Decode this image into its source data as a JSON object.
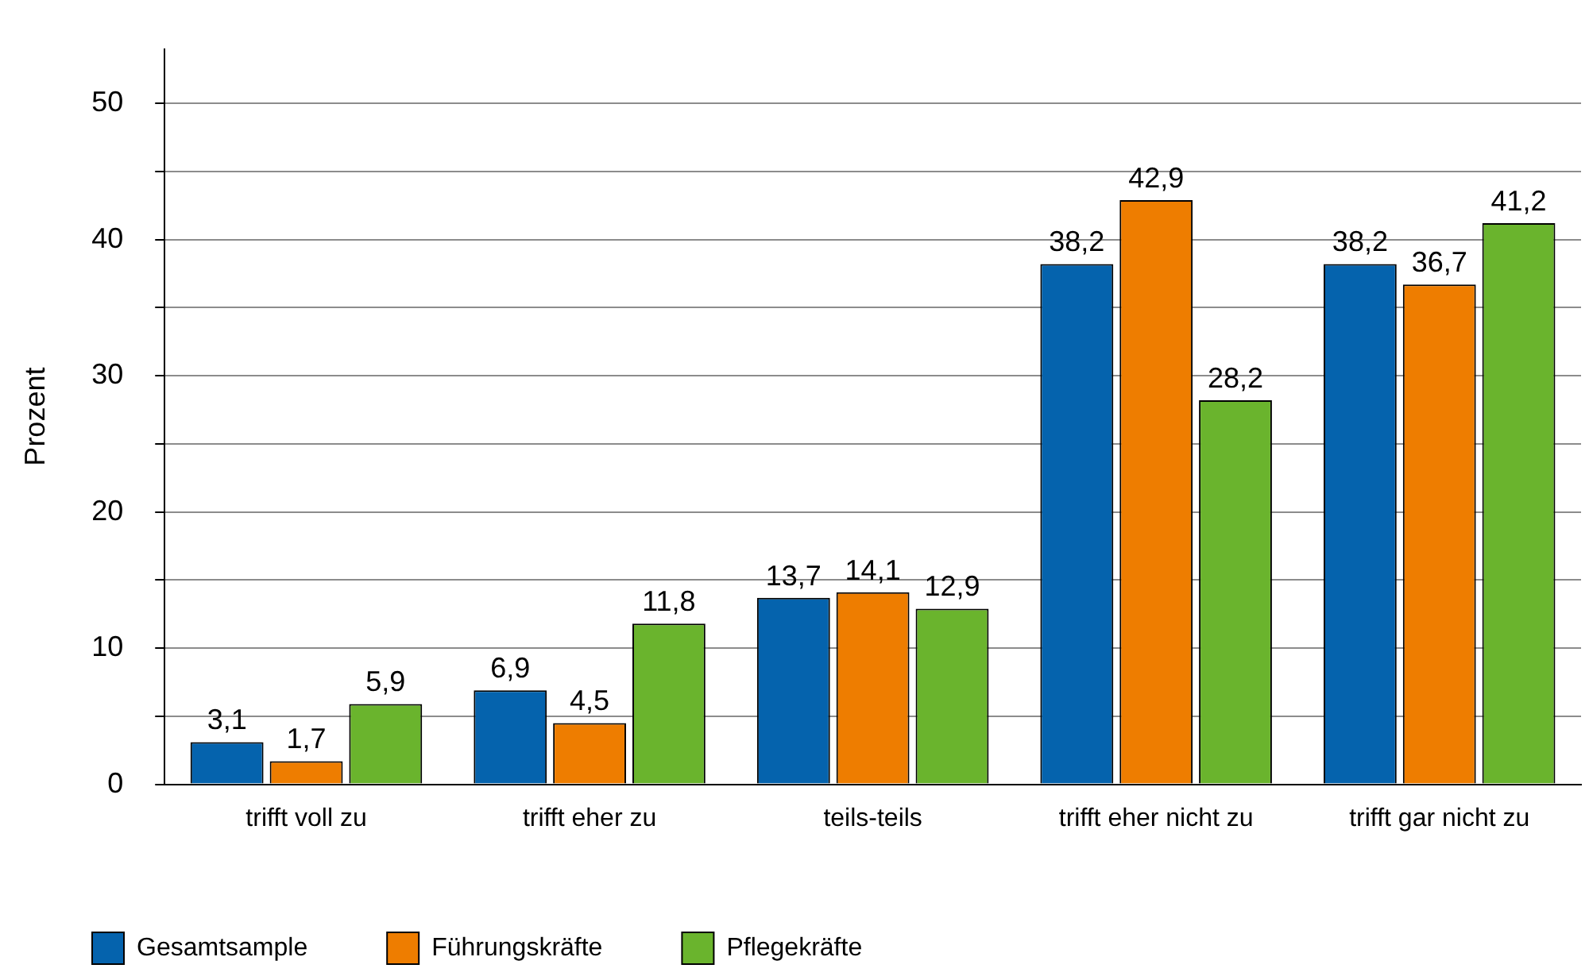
{
  "chart_data": {
    "type": "bar",
    "ylabel": "Prozent",
    "categories": [
      "trifft voll zu",
      "trifft eher zu",
      "teils-teils",
      "trifft eher nicht zu",
      "trifft gar nicht zu"
    ],
    "series": [
      {
        "name": "Gesamtsample",
        "color": "#0563ad",
        "values": [
          3.1,
          6.9,
          13.7,
          38.2,
          38.2
        ],
        "value_labels": [
          "3,1",
          "6,9",
          "13,7",
          "38,2",
          "38,2"
        ]
      },
      {
        "name": "Führungskräfte",
        "color": "#ee7d00",
        "values": [
          1.7,
          4.5,
          14.1,
          42.9,
          36.7
        ],
        "value_labels": [
          "1,7",
          "4,5",
          "14,1",
          "42,9",
          "36,7"
        ]
      },
      {
        "name": "Pflegekräfte",
        "color": "#6ab42d",
        "values": [
          5.9,
          11.8,
          12.9,
          28.2,
          41.2
        ],
        "value_labels": [
          "5,9",
          "11,8",
          "12,9",
          "28,2",
          "41,2"
        ]
      }
    ],
    "ylim": [
      0,
      54
    ],
    "yticks": [
      0,
      {
        "value": 5,
        "label": null
      },
      10,
      {
        "value": 15,
        "label": null
      },
      20,
      {
        "value": 25,
        "label": null
      },
      30,
      {
        "value": 35,
        "label": null
      },
      40,
      {
        "value": 45,
        "label": null
      },
      50
    ],
    "grid": "y",
    "legend": "bottom left"
  }
}
